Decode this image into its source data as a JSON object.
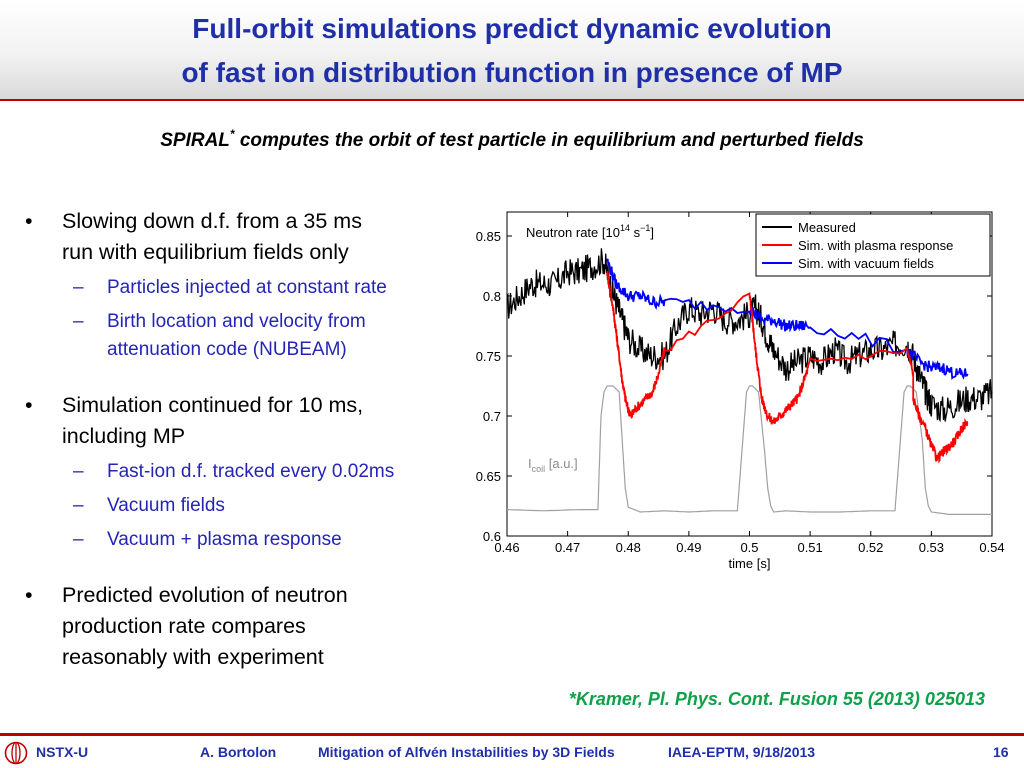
{
  "slide": {
    "title_line1": "Full-orbit simulations predict dynamic evolution",
    "title_line2": "of fast ion distribution function in presence of MP",
    "subtitle_main": "SPIRAL",
    "subtitle_mark": "*",
    "subtitle_rest": " computes the orbit of test particle in equilibrium and perturbed fields",
    "bullet_glyph": "•",
    "dash_glyph": "–",
    "citation": "*Kramer, Pl. Phys. Cont. Fusion 55 (2013) 025013"
  },
  "bullets": [
    {
      "lines": [
        "Slowing down d.f. from a 35 ms",
        "run with equilibrium fields only"
      ],
      "subs": [
        [
          "Particles injected at constant rate"
        ],
        [
          "Birth location and velocity from",
          "attenuation code (NUBEAM)"
        ]
      ]
    },
    {
      "lines": [
        "Simulation continued for 10 ms,",
        "including MP"
      ],
      "subs": [
        [
          "Fast-ion d.f. tracked every 0.02ms"
        ],
        [
          "Vacuum fields"
        ],
        [
          "Vacuum + plasma response"
        ]
      ]
    },
    {
      "lines": [
        "Predicted evolution of neutron",
        "production rate compares",
        "reasonably with experiment"
      ],
      "subs": []
    }
  ],
  "footer": {
    "org": "NSTX-U",
    "author": "A. Bortolon",
    "talk": "Mitigation of Alfvén Instabilities by 3D Fields",
    "venue": "IAEA-EPTM, 9/18/2013",
    "page": "16"
  },
  "chart_data": {
    "type": "line",
    "title": "",
    "annotation_rate": "Neutron rate [10",
    "annotation_rate_exp": "14",
    "annotation_rate_unit": " s",
    "annotation_rate_unit_exp": "−1",
    "annotation_rate_close": "]",
    "annotation_coil": "I",
    "annotation_coil_sub": "coil",
    "annotation_coil_unit": " [a.u.]",
    "xlabel": "time [s]",
    "ylabel": "",
    "xlim": [
      0.46,
      0.54
    ],
    "ylim": [
      0.6,
      0.87
    ],
    "grid": false,
    "legend_position": "top-right",
    "x_ticks": [
      0.46,
      0.47,
      0.48,
      0.49,
      0.5,
      0.51,
      0.52,
      0.53,
      0.54
    ],
    "x_tick_labels": [
      "0.46",
      "0.47",
      "0.48",
      "0.49",
      "0.5",
      "0.51",
      "0.52",
      "0.53",
      "0.54"
    ],
    "y_ticks": [
      0.6,
      0.65,
      0.7,
      0.75,
      0.8,
      0.85
    ],
    "y_tick_labels": [
      "0.6",
      "0.65",
      "0.7",
      "0.75",
      "0.8",
      "0.85"
    ],
    "series": [
      {
        "name": "Measured",
        "color": "#000000",
        "x": [
          0.46,
          0.462,
          0.464,
          0.466,
          0.468,
          0.47,
          0.472,
          0.474,
          0.476,
          0.477,
          0.478,
          0.479,
          0.48,
          0.482,
          0.484,
          0.486,
          0.488,
          0.49,
          0.492,
          0.494,
          0.496,
          0.498,
          0.5,
          0.501,
          0.502,
          0.503,
          0.504,
          0.506,
          0.508,
          0.51,
          0.512,
          0.514,
          0.516,
          0.518,
          0.52,
          0.522,
          0.524,
          0.526,
          0.527,
          0.528,
          0.529,
          0.53,
          0.532,
          0.534,
          0.536,
          0.538,
          0.54
        ],
        "y": [
          0.79,
          0.8,
          0.81,
          0.81,
          0.81,
          0.82,
          0.82,
          0.825,
          0.83,
          0.81,
          0.795,
          0.78,
          0.765,
          0.755,
          0.75,
          0.75,
          0.775,
          0.79,
          0.785,
          0.79,
          0.78,
          0.78,
          0.785,
          0.79,
          0.78,
          0.765,
          0.755,
          0.74,
          0.745,
          0.75,
          0.745,
          0.755,
          0.745,
          0.75,
          0.755,
          0.755,
          0.76,
          0.76,
          0.75,
          0.735,
          0.72,
          0.71,
          0.705,
          0.71,
          0.715,
          0.715,
          0.72
        ]
      },
      {
        "name": "Sim. with plasma response",
        "color": "#ff0000",
        "x": [
          0.4765,
          0.4775,
          0.478,
          0.4785,
          0.479,
          0.4795,
          0.48,
          0.4805,
          0.481,
          0.482,
          0.483,
          0.484,
          0.485,
          0.486,
          0.5,
          0.5005,
          0.501,
          0.5015,
          0.502,
          0.503,
          0.504,
          0.505,
          0.506,
          0.507,
          0.508,
          0.509,
          0.51,
          0.526,
          0.527,
          0.527,
          0.528,
          0.529,
          0.53,
          0.531,
          0.532,
          0.533,
          0.534,
          0.535,
          0.536
        ],
        "y": [
          0.82,
          0.79,
          0.77,
          0.75,
          0.73,
          0.715,
          0.705,
          0.7,
          0.705,
          0.71,
          0.715,
          0.72,
          0.735,
          0.755,
          0.8,
          0.78,
          0.755,
          0.735,
          0.715,
          0.7,
          0.695,
          0.7,
          0.705,
          0.71,
          0.715,
          0.73,
          0.745,
          0.755,
          0.735,
          0.715,
          0.7,
          0.69,
          0.675,
          0.665,
          0.67,
          0.675,
          0.68,
          0.69,
          0.695
        ]
      },
      {
        "name": "Sim. with vacuum fields",
        "color": "#0000ff",
        "x": [
          0.4765,
          0.478,
          0.48,
          0.482,
          0.484,
          0.486,
          0.5,
          0.502,
          0.504,
          0.506,
          0.508,
          0.51,
          0.526,
          0.528,
          0.53,
          0.532,
          0.534,
          0.536
        ],
        "y": [
          0.83,
          0.81,
          0.8,
          0.8,
          0.795,
          0.795,
          0.79,
          0.78,
          0.78,
          0.775,
          0.775,
          0.775,
          0.755,
          0.745,
          0.74,
          0.74,
          0.735,
          0.735
        ]
      },
      {
        "name": "",
        "color": "#a0a0a0",
        "x": [
          0.46,
          0.466,
          0.472,
          0.475,
          0.4755,
          0.476,
          0.4765,
          0.4775,
          0.4785,
          0.479,
          0.4795,
          0.48,
          0.482,
          0.486,
          0.49,
          0.494,
          0.498,
          0.4995,
          0.5,
          0.5005,
          0.5015,
          0.5025,
          0.503,
          0.5035,
          0.504,
          0.506,
          0.51,
          0.515,
          0.52,
          0.524,
          0.5255,
          0.526,
          0.5265,
          0.5275,
          0.5285,
          0.529,
          0.5295,
          0.53,
          0.533,
          0.537,
          0.54
        ],
        "y": [
          0.622,
          0.621,
          0.622,
          0.622,
          0.7,
          0.72,
          0.725,
          0.725,
          0.72,
          0.68,
          0.64,
          0.624,
          0.62,
          0.621,
          0.62,
          0.621,
          0.621,
          0.72,
          0.725,
          0.725,
          0.72,
          0.67,
          0.64,
          0.625,
          0.62,
          0.621,
          0.62,
          0.62,
          0.621,
          0.621,
          0.72,
          0.725,
          0.725,
          0.72,
          0.68,
          0.64,
          0.625,
          0.62,
          0.618,
          0.618,
          0.618
        ]
      }
    ]
  }
}
